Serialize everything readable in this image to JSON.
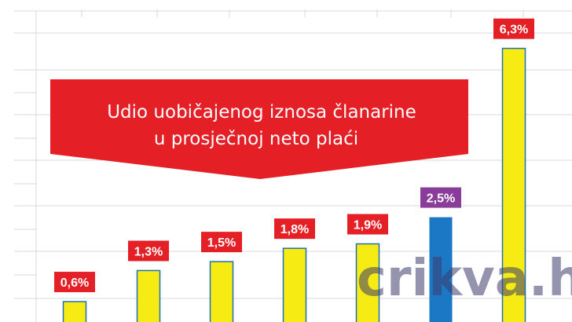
{
  "chart_data": {
    "type": "bar",
    "title_lines": [
      "Udio uobičajenog iznosa članarine",
      "u prosječnoj neto plaći"
    ],
    "categories": [
      "",
      "",
      "",
      "",
      "",
      "",
      ""
    ],
    "values": [
      0.6,
      1.3,
      1.5,
      1.8,
      1.9,
      2.5,
      6.3
    ],
    "labels": [
      "0,6%",
      "1,3%",
      "1,5%",
      "1,8%",
      "1,9%",
      "2,5%",
      "6,3%"
    ],
    "highlight_index": 5,
    "ylim": [
      0,
      7
    ],
    "grid": true,
    "colors": {
      "bar": "#f6ec13",
      "bar_border": "#1c6fb8",
      "highlight_bar": "#1b78c4",
      "label_bg": "#e41f26",
      "highlight_label_bg": "#8a3c9a",
      "title_banner": "#e41f26",
      "grid": "#d9d9d9"
    }
  },
  "watermark": "crikva.hr"
}
